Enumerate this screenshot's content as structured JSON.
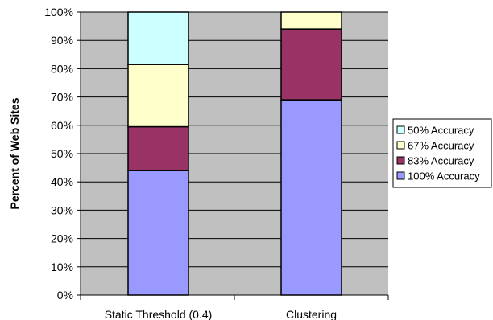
{
  "chart_data": {
    "type": "bar",
    "stacked": true,
    "normalized": true,
    "categories": [
      "Static Threshold (0.4)",
      "Clustering"
    ],
    "series": [
      {
        "name": "100% Accuracy",
        "color": "#9999ff",
        "values": [
          44,
          69
        ]
      },
      {
        "name": "83% Accuracy",
        "color": "#993366",
        "values": [
          15.5,
          25
        ]
      },
      {
        "name": "67% Accuracy",
        "color": "#ffffcc",
        "values": [
          22,
          6
        ]
      },
      {
        "name": "50% Accuracy",
        "color": "#ccffff",
        "values": [
          18.5,
          0
        ]
      }
    ],
    "legend_order": [
      "50% Accuracy",
      "67% Accuracy",
      "83% Accuracy",
      "100% Accuracy"
    ],
    "ylabel": "Percent of Web Sites",
    "ylim": [
      0,
      100
    ],
    "yticks": [
      "0%",
      "10%",
      "20%",
      "30%",
      "40%",
      "50%",
      "60%",
      "70%",
      "80%",
      "90%",
      "100%"
    ],
    "grid": true,
    "plot_background": "#c0c0c0",
    "legend_position": "right"
  }
}
